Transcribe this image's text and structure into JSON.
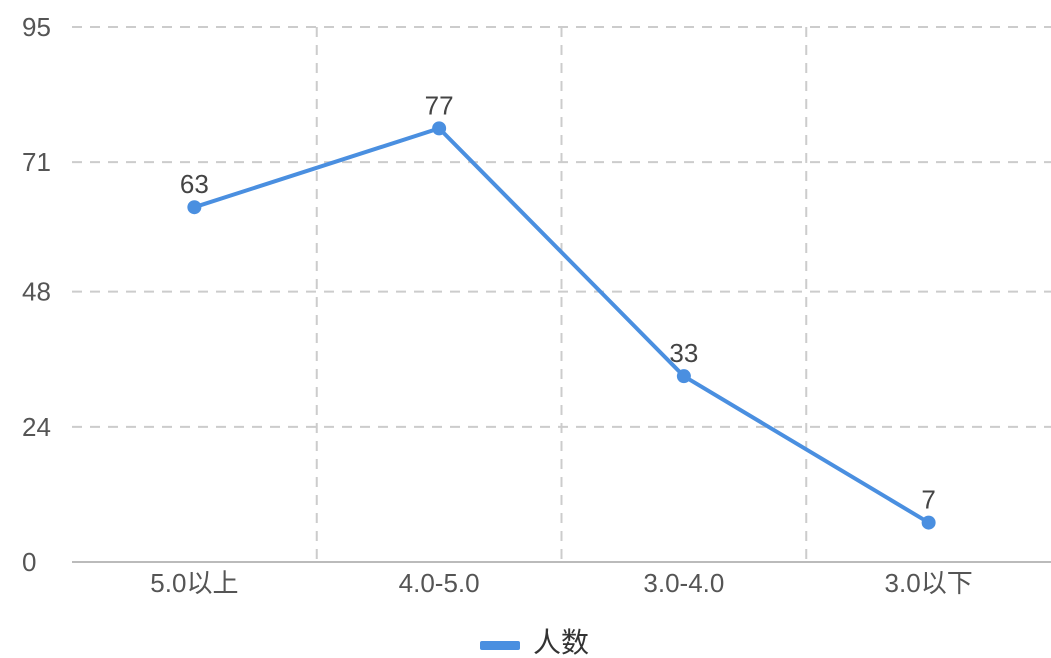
{
  "chart_data": {
    "type": "line",
    "categories": [
      "5.0以上",
      "4.0-5.0",
      "3.0-4.0",
      "3.0以下"
    ],
    "series": [
      {
        "name": "人数",
        "values": [
          63,
          77,
          33,
          7
        ],
        "color": "#4a8fe0"
      }
    ],
    "yticks": [
      0,
      24,
      48,
      71,
      95
    ],
    "ylim": [
      0,
      95
    ],
    "grid": true,
    "legend_position": "bottom-center",
    "data_labels": true
  }
}
